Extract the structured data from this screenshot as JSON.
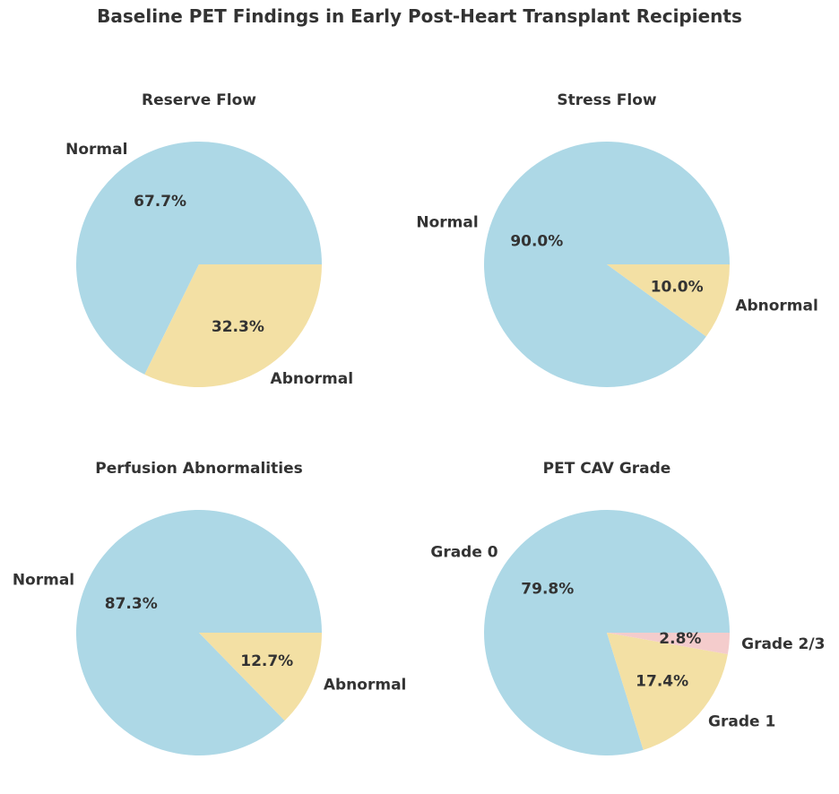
{
  "figure_title": "Baseline PET Findings in Early Post-Heart Transplant Recipients",
  "colors": {
    "normal": "#add8e6",
    "abnormal": "#f3e0a4",
    "grade23": "#f4cccc",
    "text": "#333333"
  },
  "chart_data": [
    {
      "type": "pie",
      "title": "Reserve Flow",
      "labels": [
        "Normal",
        "Abnormal"
      ],
      "values": [
        67.7,
        32.3
      ],
      "value_labels": [
        "67.7%",
        "32.3%"
      ],
      "colors": [
        "#add8e6",
        "#f3e0a4"
      ]
    },
    {
      "type": "pie",
      "title": "Stress Flow",
      "labels": [
        "Normal",
        "Abnormal"
      ],
      "values": [
        90.0,
        10.0
      ],
      "value_labels": [
        "90.0%",
        "10.0%"
      ],
      "colors": [
        "#add8e6",
        "#f3e0a4"
      ]
    },
    {
      "type": "pie",
      "title": "Perfusion Abnormalities",
      "labels": [
        "Normal",
        "Abnormal"
      ],
      "values": [
        87.3,
        12.7
      ],
      "value_labels": [
        "87.3%",
        "12.7%"
      ],
      "colors": [
        "#add8e6",
        "#f3e0a4"
      ]
    },
    {
      "type": "pie",
      "title": "PET CAV Grade",
      "labels": [
        "Grade 0",
        "Grade 1",
        "Grade 2/3"
      ],
      "values": [
        79.8,
        17.4,
        2.8
      ],
      "value_labels": [
        "79.8%",
        "17.4%",
        "2.8%"
      ],
      "colors": [
        "#add8e6",
        "#f3e0a4",
        "#f4cccc"
      ]
    }
  ]
}
